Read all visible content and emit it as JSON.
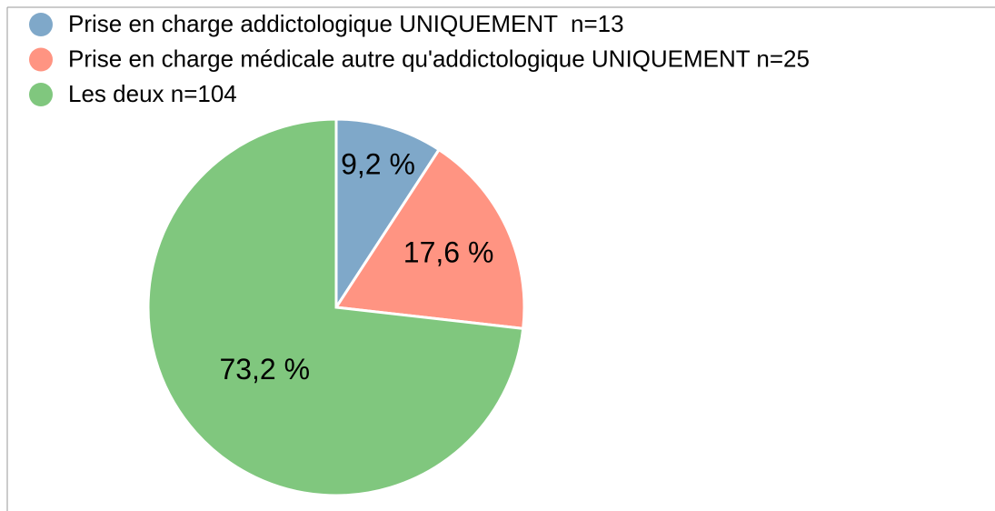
{
  "chart_data": {
    "type": "pie",
    "categories": [
      "Prise en charge addictologique UNIQUEMENT  n=13",
      "Prise en charge médicale autre qu'addictologique UNIQUEMENT n=25",
      "Les deux n=104"
    ],
    "values": [
      9.2,
      17.6,
      73.2
    ],
    "value_labels": [
      "9,2 %",
      "17,6 %",
      "73,2 %"
    ],
    "colors": [
      "#7fa8c9",
      "#ff9482",
      "#80c77e"
    ],
    "legend": "top-left"
  }
}
